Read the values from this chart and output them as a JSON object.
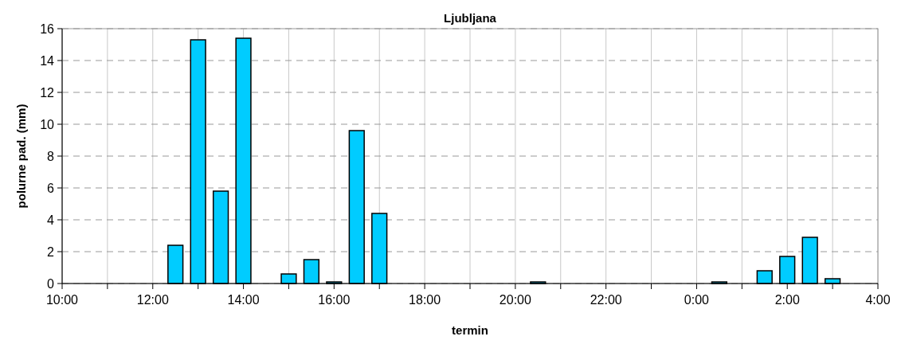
{
  "chart_data": {
    "type": "bar",
    "title": "Ljubljana",
    "xlabel": "termin",
    "ylabel": "polurne pad. (mm)",
    "x": [
      "2000-01-01T12:30",
      "2000-01-01T13:00",
      "2000-01-01T13:30",
      "2000-01-01T14:00",
      "2000-01-01T15:00",
      "2000-01-01T15:30",
      "2000-01-01T16:00",
      "2000-01-01T16:30",
      "2000-01-01T17:00",
      "2000-01-01T20:30",
      "2000-01-02T00:30",
      "2000-01-02T01:30",
      "2000-01-02T02:00",
      "2000-01-02T02:30",
      "2000-01-02T03:00"
    ],
    "values": [
      2.4,
      15.3,
      5.8,
      15.4,
      0.6,
      1.5,
      0.1,
      9.6,
      4.4,
      0.1,
      0.1,
      0.8,
      1.7,
      2.9,
      0.3
    ],
    "color": "#00ccff",
    "xlim": [
      "2000-01-01T10:00",
      "2000-01-02T04:00"
    ],
    "xticks": [
      {
        "value": "2000-01-01T10:00",
        "label": "10:00"
      },
      {
        "value": "2000-01-01T11:00",
        "label": null
      },
      {
        "value": "2000-01-01T12:00",
        "label": "12:00"
      },
      {
        "value": "2000-01-01T13:00",
        "label": null
      },
      {
        "value": "2000-01-01T14:00",
        "label": "14:00"
      },
      {
        "value": "2000-01-01T15:00",
        "label": null
      },
      {
        "value": "2000-01-01T16:00",
        "label": "16:00"
      },
      {
        "value": "2000-01-01T17:00",
        "label": null
      },
      {
        "value": "2000-01-01T18:00",
        "label": "18:00"
      },
      {
        "value": "2000-01-01T19:00",
        "label": null
      },
      {
        "value": "2000-01-01T20:00",
        "label": "20:00"
      },
      {
        "value": "2000-01-01T21:00",
        "label": null
      },
      {
        "value": "2000-01-01T22:00",
        "label": "22:00"
      },
      {
        "value": "2000-01-01T23:00",
        "label": null
      },
      {
        "value": "2000-01-02T00:00",
        "label": "0:00"
      },
      {
        "value": "2000-01-02T01:00",
        "label": null
      },
      {
        "value": "2000-01-02T02:00",
        "label": "2:00"
      },
      {
        "value": "2000-01-02T03:00",
        "label": null
      },
      {
        "value": "2000-01-02T04:00",
        "label": "4:00"
      }
    ],
    "ylim": [
      0,
      16
    ],
    "yticks": [
      0,
      2,
      4,
      6,
      8,
      10,
      12,
      14,
      16
    ],
    "grid": true
  }
}
